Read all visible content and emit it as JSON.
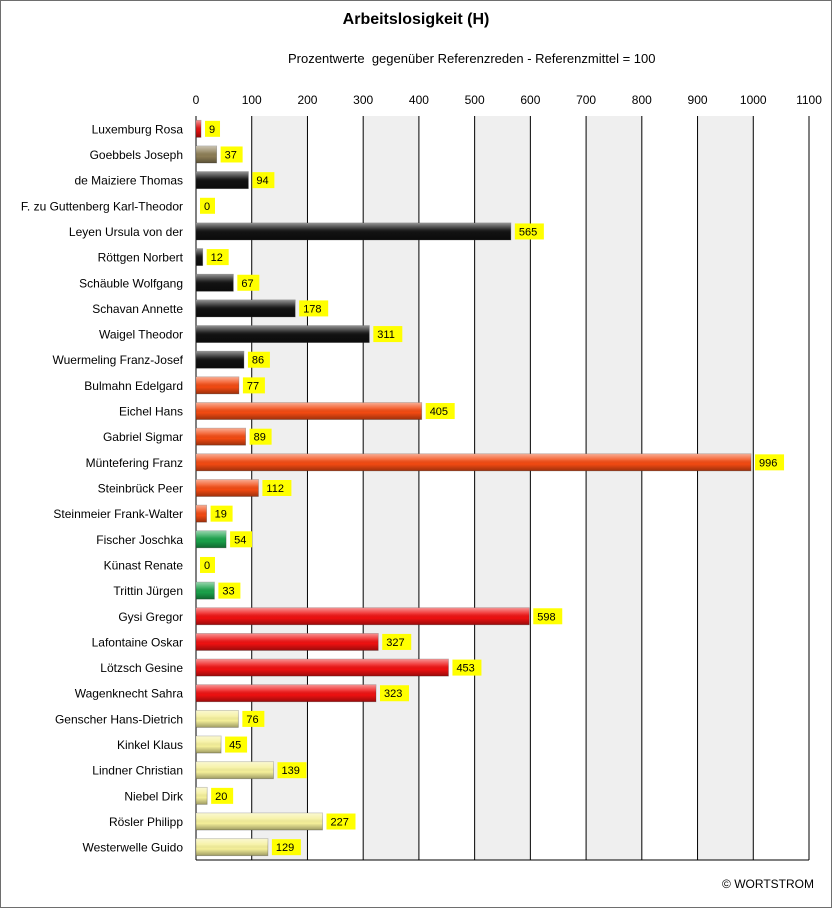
{
  "chart_data": {
    "type": "bar",
    "orientation": "horizontal",
    "title": "Arbeitslosigkeit (H)",
    "subtitle": "Prozentwerte  gegenüber Referenzreden - Referenzmittel = 100",
    "xlim": [
      0,
      1100
    ],
    "xticks": [
      0,
      100,
      200,
      300,
      400,
      500,
      600,
      700,
      800,
      900,
      1000,
      1100
    ],
    "xaxis_position": "top",
    "grid": true,
    "legend": "none",
    "data_label_color": "#ffff00",
    "categories": [
      "Luxemburg Rosa",
      "Goebbels Joseph",
      "de Maiziere Thomas",
      "F. zu Guttenberg Karl-Theodor",
      "Leyen Ursula von der",
      "Röttgen Norbert",
      "Schäuble Wolfgang",
      "Schavan Annette",
      "Waigel Theodor",
      "Wuermeling Franz-Josef",
      "Bulmahn Edelgard",
      "Eichel Hans",
      "Gabriel Sigmar",
      "Müntefering Franz",
      "Steinbrück Peer",
      "Steinmeier Frank-Walter",
      "Fischer Joschka",
      "Künast Renate",
      "Trittin Jürgen",
      "Gysi Gregor",
      "Lafontaine Oskar",
      "Lötzsch Gesine",
      "Wagenknecht Sahra",
      "Genscher Hans-Dietrich",
      "Kinkel Klaus",
      "Lindner Christian",
      "Niebel Dirk",
      "Rösler Philipp",
      "Westerwelle Guido"
    ],
    "values": [
      9,
      37,
      94,
      0,
      565,
      12,
      67,
      178,
      311,
      86,
      77,
      405,
      89,
      996,
      112,
      19,
      54,
      0,
      33,
      598,
      327,
      453,
      323,
      76,
      45,
      139,
      20,
      227,
      129
    ],
    "colors": [
      "#e01010",
      "#8c7d55",
      "#111111",
      "#111111",
      "#111111",
      "#111111",
      "#111111",
      "#111111",
      "#111111",
      "#111111",
      "#f24a12",
      "#f24a12",
      "#f24a12",
      "#f24a12",
      "#f24a12",
      "#f24a12",
      "#1aa14a",
      "#1aa14a",
      "#1aa14a",
      "#ee1111",
      "#ee1111",
      "#ee1111",
      "#ee1111",
      "#f5f09a",
      "#f5f09a",
      "#f5f09a",
      "#f5f09a",
      "#f5f09a",
      "#f5f09a"
    ]
  },
  "copyright": "© WORTSTROM"
}
